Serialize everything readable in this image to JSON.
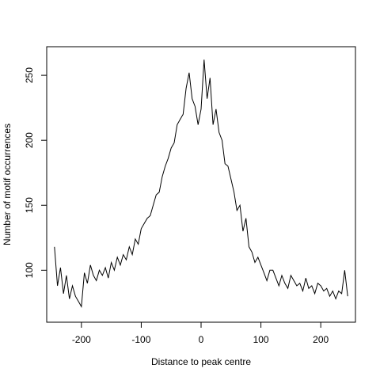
{
  "chart_data": {
    "type": "line",
    "title": "",
    "xlabel": "Distance to peak centre",
    "ylabel": "Number of motif occurrences",
    "xlim": [
      -258,
      258
    ],
    "ylim": [
      60,
      272
    ],
    "xticks": [
      -200,
      -100,
      0,
      100,
      200
    ],
    "yticks": [
      100,
      150,
      200,
      250
    ],
    "xtick_labels": [
      "-200",
      "-100",
      "0",
      "100",
      "200"
    ],
    "ytick_labels": [
      "100",
      "150",
      "200",
      "250"
    ],
    "grid": false,
    "legend": "none",
    "line_color": "#000000",
    "series": [
      {
        "x": [
          -245,
          -240,
          -235,
          -230,
          -225,
          -220,
          -215,
          -210,
          -205,
          -200,
          -195,
          -190,
          -185,
          -180,
          -175,
          -170,
          -165,
          -160,
          -155,
          -150,
          -145,
          -140,
          -135,
          -130,
          -125,
          -120,
          -115,
          -110,
          -105,
          -100,
          -95,
          -90,
          -85,
          -80,
          -75,
          -70,
          -65,
          -60,
          -55,
          -50,
          -45,
          -40,
          -35,
          -30,
          -25,
          -20,
          -15,
          -10,
          -5,
          0,
          5,
          10,
          15,
          20,
          25,
          30,
          35,
          40,
          45,
          50,
          55,
          60,
          65,
          70,
          75,
          80,
          85,
          90,
          95,
          100,
          105,
          110,
          115,
          120,
          125,
          130,
          135,
          140,
          145,
          150,
          155,
          160,
          165,
          170,
          175,
          180,
          185,
          190,
          195,
          200,
          205,
          210,
          215,
          220,
          225,
          230,
          235,
          240,
          245
        ],
        "values": [
          118,
          88,
          102,
          82,
          96,
          78,
          88,
          80,
          76,
          72,
          98,
          90,
          104,
          96,
          92,
          100,
          96,
          102,
          94,
          106,
          100,
          110,
          104,
          112,
          108,
          118,
          112,
          124,
          120,
          132,
          136,
          140,
          142,
          150,
          158,
          160,
          172,
          180,
          186,
          194,
          198,
          212,
          216,
          220,
          240,
          252,
          232,
          226,
          212,
          224,
          262,
          232,
          248,
          212,
          224,
          206,
          200,
          182,
          180,
          170,
          160,
          146,
          150,
          130,
          140,
          118,
          114,
          106,
          110,
          104,
          98,
          92,
          100,
          100,
          94,
          88,
          96,
          90,
          86,
          96,
          92,
          88,
          90,
          84,
          94,
          86,
          88,
          82,
          90,
          88,
          84,
          86,
          80,
          84,
          78,
          84,
          82,
          100,
          80
        ]
      }
    ]
  }
}
